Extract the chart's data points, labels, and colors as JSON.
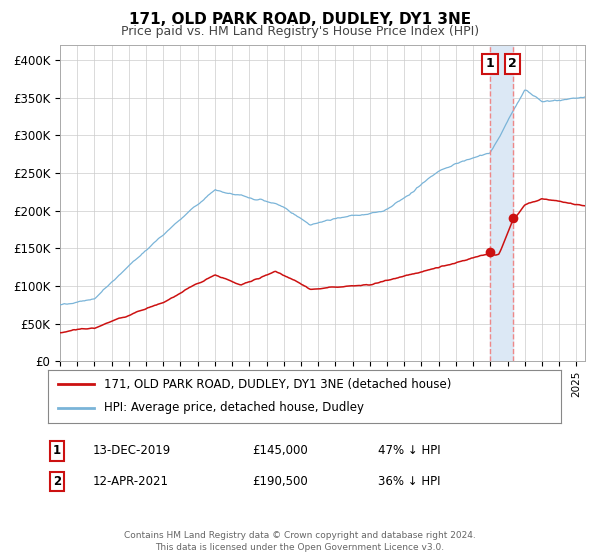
{
  "title": "171, OLD PARK ROAD, DUDLEY, DY1 3NE",
  "subtitle": "Price paid vs. HM Land Registry's House Price Index (HPI)",
  "ylim": [
    0,
    420000
  ],
  "yticks": [
    0,
    50000,
    100000,
    150000,
    200000,
    250000,
    300000,
    350000,
    400000
  ],
  "ytick_labels": [
    "£0",
    "£50K",
    "£100K",
    "£150K",
    "£200K",
    "£250K",
    "£300K",
    "£350K",
    "£400K"
  ],
  "xlim_start": 1995,
  "xlim_end": 2025.5,
  "hpi_color": "#7ab4d8",
  "price_color": "#cc1111",
  "marker_color": "#cc1111",
  "shading_color": "#dce8f5",
  "vline_color": "#ee8888",
  "background_color": "#ffffff",
  "grid_color": "#cccccc",
  "legend_label_price": "171, OLD PARK ROAD, DUDLEY, DY1 3NE (detached house)",
  "legend_label_hpi": "HPI: Average price, detached house, Dudley",
  "transaction1_date": "13-DEC-2019",
  "transaction1_price": "£145,000",
  "transaction1_info": "47% ↓ HPI",
  "transaction2_date": "12-APR-2021",
  "transaction2_price": "£190,500",
  "transaction2_info": "36% ↓ HPI",
  "footer": "Contains HM Land Registry data © Crown copyright and database right 2024.\nThis data is licensed under the Open Government Licence v3.0.",
  "transaction1_x": 2019.96,
  "transaction2_x": 2021.29,
  "transaction1_y": 145000,
  "transaction2_y": 190500
}
